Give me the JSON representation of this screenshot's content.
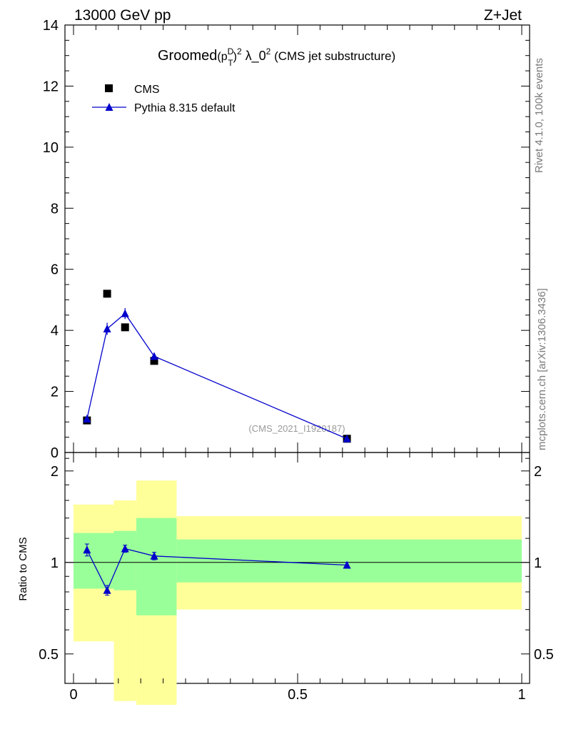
{
  "header": {
    "left": "13000 GeV pp",
    "right": "Z+Jet"
  },
  "title": {
    "lead": "Groomed",
    "p": "(p",
    "sup_D": "D",
    "sub_T": "T",
    "close": ")",
    "sup_2a": "2",
    "lambda": " λ_0",
    "sup_2b": "2",
    "tail": " (CMS jet substructure)"
  },
  "side_text": {
    "rivet": "Rivet 4.1.0,  100k events",
    "mcplots": "mcplots.cern.ch [arXiv:1306.3436]"
  },
  "watermark": "(CMS_2021_I1920187)",
  "ratio_ylabel": "Ratio to CMS",
  "legend": {
    "data_label": "CMS",
    "mc_label": "Pythia 8.315 default"
  },
  "colors": {
    "mc": "#0000cc",
    "band_inner": "#99ff99",
    "band_outer": "#ffff99",
    "data": "#000000"
  },
  "chart_data": {
    "type": "scatter",
    "xlim": [
      0,
      1
    ],
    "main": {
      "ylim": [
        0,
        14
      ],
      "yticks": [
        "0",
        "2",
        "4",
        "6",
        "8",
        "10",
        "12",
        "14"
      ],
      "series": [
        {
          "name": "CMS",
          "marker": "square",
          "x": [
            0.03,
            0.075,
            0.115,
            0.18,
            0.61
          ],
          "y": [
            1.05,
            5.2,
            4.1,
            3.0,
            0.45
          ]
        },
        {
          "name": "Pythia 8.315 default",
          "marker": "triangle",
          "x": [
            0.03,
            0.075,
            0.115,
            0.18,
            0.61
          ],
          "y": [
            1.1,
            4.05,
            4.55,
            3.15,
            0.45
          ],
          "yerr": [
            0.05,
            0.2,
            0.18,
            0.1,
            0.02
          ]
        }
      ]
    },
    "ratio": {
      "ylim": [
        0.4,
        2.3
      ],
      "yticks": [
        "0.5",
        "1",
        "2"
      ],
      "bins": [
        {
          "lo": 0.0,
          "hi": 0.09,
          "inner": [
            0.82,
            1.25
          ],
          "outer": [
            0.55,
            1.55
          ]
        },
        {
          "lo": 0.09,
          "hi": 0.14,
          "inner": [
            0.81,
            1.27
          ],
          "outer": [
            0.35,
            1.6
          ]
        },
        {
          "lo": 0.14,
          "hi": 0.23,
          "inner": [
            0.67,
            1.4
          ],
          "outer": [
            0.34,
            1.86
          ]
        },
        {
          "lo": 0.23,
          "hi": 1.0,
          "inner": [
            0.86,
            1.19
          ],
          "outer": [
            0.7,
            1.42
          ]
        }
      ],
      "mc": {
        "x": [
          0.03,
          0.075,
          0.115,
          0.18,
          0.61
        ],
        "y": [
          1.1,
          0.81,
          1.11,
          1.05,
          0.98
        ],
        "yerr": [
          0.05,
          0.03,
          0.03,
          0.03,
          0.02
        ]
      }
    },
    "xticks": [
      "0",
      "0.5",
      "1"
    ]
  }
}
